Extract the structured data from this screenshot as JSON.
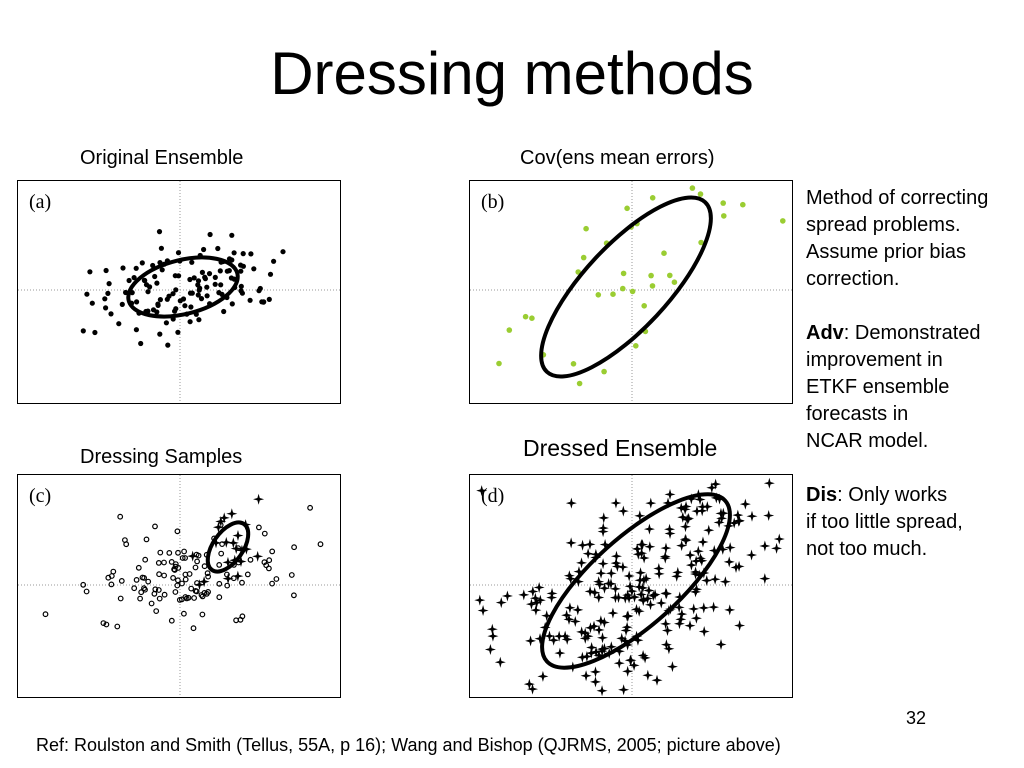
{
  "slide": {
    "title": "Dressing methods",
    "page_number": "32",
    "reference": "Ref: Roulston and Smith (Tellus, 55A, p 16); Wang and Bishop (QJRMS, 2005; picture above)"
  },
  "panels": [
    {
      "id": "a",
      "label": "Original Ensemble",
      "tag": "(a)"
    },
    {
      "id": "b",
      "label": "Cov(ens mean errors)",
      "tag": "(b)"
    },
    {
      "id": "c",
      "label": "Dressing Samples",
      "tag": "(c)"
    },
    {
      "id": "d",
      "label": "Dressed Ensemble",
      "tag": "(d)"
    }
  ],
  "notes": {
    "intro_line1": "Method of correcting",
    "intro_line2": "spread problems.",
    "intro_line3": "Assume prior bias",
    "intro_line4": "correction.",
    "adv_label": "Adv",
    "adv_text1": ": Demonstrated",
    "adv_line2": "improvement in",
    "adv_line3": "ETKF ensemble",
    "adv_line4": "forecasts in",
    "adv_line5": "NCAR model.",
    "dis_label": "Dis",
    "dis_text1": ": Only works",
    "dis_line2": "if too little spread,",
    "dis_line3": "not too much."
  },
  "colors": {
    "sample_points": "#9acd32",
    "ink": "#000000",
    "crosshair": "#999999"
  }
}
